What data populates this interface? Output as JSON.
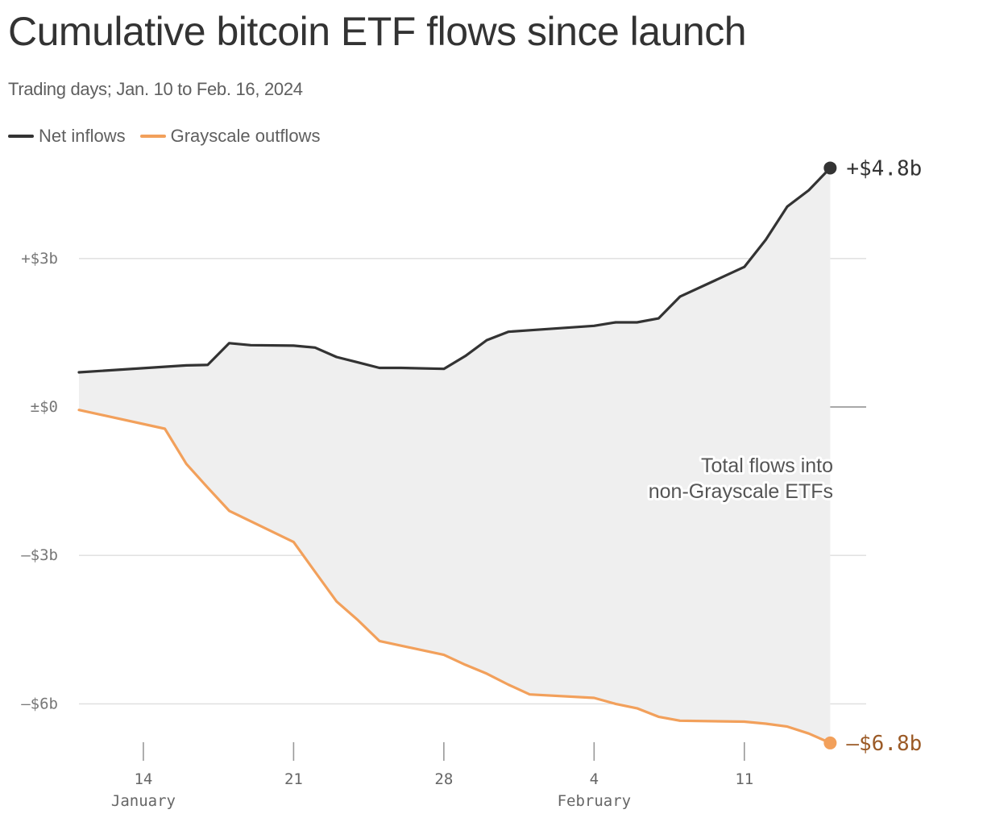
{
  "title": "Cumulative bitcoin ETF flows since launch",
  "subtitle": "Trading days; Jan. 10 to Feb. 16, 2024",
  "legend": [
    {
      "label": "Net inflows",
      "color": "#333333"
    },
    {
      "label": "Grayscale outflows",
      "color": "#f2a05b"
    }
  ],
  "annotation": [
    "Total flows into",
    "non-Grayscale ETFs"
  ],
  "chart_data": {
    "type": "line",
    "title": "Cumulative bitcoin ETF flows since launch",
    "subtitle": "Trading days; Jan. 10 to Feb. 16, 2024",
    "xlabel": "",
    "ylabel": "",
    "x_range": [
      "2024-01-11",
      "2024-02-16"
    ],
    "ylim": [
      -6.9,
      5.0
    ],
    "y_ticks": [
      {
        "value": 3,
        "label": "+$3b"
      },
      {
        "value": 0,
        "label": "±$0"
      },
      {
        "value": -3,
        "label": "–$3b"
      },
      {
        "value": -6,
        "label": "–$6b"
      }
    ],
    "x_ticks": [
      {
        "date": "2024-01-14",
        "label": "14"
      },
      {
        "date": "2024-01-21",
        "label": "21"
      },
      {
        "date": "2024-01-28",
        "label": "28"
      },
      {
        "date": "2024-02-04",
        "label": "4"
      },
      {
        "date": "2024-02-11",
        "label": "11"
      }
    ],
    "x_month_labels": [
      {
        "date": "2024-01-14",
        "label": "January"
      },
      {
        "date": "2024-02-04",
        "label": "February"
      }
    ],
    "grid": true,
    "legend_position": "top-left",
    "fill_between_series": true,
    "series": [
      {
        "name": "Net inflows",
        "color": "#333333",
        "end_label": "+$4.8b",
        "points": [
          {
            "x": "2024-01-11",
            "y": 0.7
          },
          {
            "x": "2024-01-16",
            "y": 0.84
          },
          {
            "x": "2024-01-17",
            "y": 0.85
          },
          {
            "x": "2024-01-18",
            "y": 1.29
          },
          {
            "x": "2024-01-19",
            "y": 1.25
          },
          {
            "x": "2024-01-21",
            "y": 1.24
          },
          {
            "x": "2024-01-22",
            "y": 1.2
          },
          {
            "x": "2024-01-23",
            "y": 1.01
          },
          {
            "x": "2024-01-24",
            "y": 0.9
          },
          {
            "x": "2024-01-25",
            "y": 0.79
          },
          {
            "x": "2024-01-26",
            "y": 0.79
          },
          {
            "x": "2024-01-28",
            "y": 0.77
          },
          {
            "x": "2024-01-29",
            "y": 1.03
          },
          {
            "x": "2024-01-30",
            "y": 1.35
          },
          {
            "x": "2024-01-31",
            "y": 1.52
          },
          {
            "x": "2024-02-01",
            "y": 1.55
          },
          {
            "x": "2024-02-04",
            "y": 1.64
          },
          {
            "x": "2024-02-05",
            "y": 1.71
          },
          {
            "x": "2024-02-06",
            "y": 1.71
          },
          {
            "x": "2024-02-07",
            "y": 1.79
          },
          {
            "x": "2024-02-08",
            "y": 2.23
          },
          {
            "x": "2024-02-11",
            "y": 2.83
          },
          {
            "x": "2024-02-12",
            "y": 3.38
          },
          {
            "x": "2024-02-13",
            "y": 4.05
          },
          {
            "x": "2024-02-14",
            "y": 4.38
          },
          {
            "x": "2024-02-15",
            "y": 4.83
          }
        ]
      },
      {
        "name": "Grayscale outflows",
        "color": "#f2a05b",
        "end_label": "–$6.8b",
        "end_label_color": "#9b5a26",
        "points": [
          {
            "x": "2024-01-11",
            "y": -0.06
          },
          {
            "x": "2024-01-15",
            "y": -0.44
          },
          {
            "x": "2024-01-16",
            "y": -1.15
          },
          {
            "x": "2024-01-17",
            "y": -1.63
          },
          {
            "x": "2024-01-18",
            "y": -2.1
          },
          {
            "x": "2024-01-21",
            "y": -2.73
          },
          {
            "x": "2024-01-22",
            "y": -3.33
          },
          {
            "x": "2024-01-23",
            "y": -3.93
          },
          {
            "x": "2024-01-24",
            "y": -4.31
          },
          {
            "x": "2024-01-25",
            "y": -4.73
          },
          {
            "x": "2024-01-28",
            "y": -5.01
          },
          {
            "x": "2024-01-29",
            "y": -5.21
          },
          {
            "x": "2024-01-30",
            "y": -5.39
          },
          {
            "x": "2024-01-31",
            "y": -5.61
          },
          {
            "x": "2024-02-01",
            "y": -5.81
          },
          {
            "x": "2024-02-04",
            "y": -5.88
          },
          {
            "x": "2024-02-05",
            "y": -6.0
          },
          {
            "x": "2024-02-06",
            "y": -6.09
          },
          {
            "x": "2024-02-07",
            "y": -6.26
          },
          {
            "x": "2024-02-08",
            "y": -6.34
          },
          {
            "x": "2024-02-11",
            "y": -6.36
          },
          {
            "x": "2024-02-12",
            "y": -6.4
          },
          {
            "x": "2024-02-13",
            "y": -6.46
          },
          {
            "x": "2024-02-14",
            "y": -6.6
          },
          {
            "x": "2024-02-15",
            "y": -6.79
          }
        ]
      }
    ]
  }
}
